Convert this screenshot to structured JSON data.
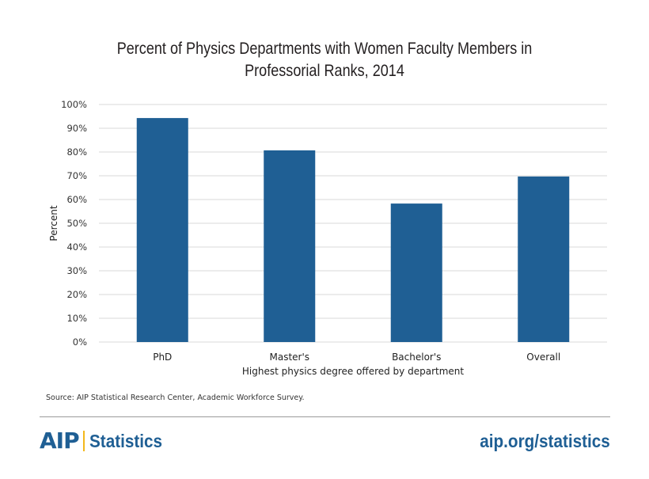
{
  "chart_data": {
    "type": "bar",
    "title": "Percent of Physics Departments with Women Faculty Members in Professorial Ranks, 2014",
    "title_lines": [
      "Percent of Physics Departments with Women Faculty Members in",
      "Professorial Ranks, 2014"
    ],
    "categories": [
      "PhD",
      "Master's",
      "Bachelor's",
      "Overall"
    ],
    "values": [
      94.3,
      80.7,
      58.3,
      69.7
    ],
    "value_unit": "%",
    "xlabel": "Highest physics degree offered by department",
    "ylabel": "Percent",
    "ylim": [
      0,
      100
    ],
    "yticks": [
      0,
      10,
      20,
      30,
      40,
      50,
      60,
      70,
      80,
      90,
      100
    ],
    "ytick_labels": [
      "0%",
      "10%",
      "20%",
      "30%",
      "40%",
      "50%",
      "60%",
      "70%",
      "80%",
      "90%",
      "100%"
    ],
    "grid": true,
    "legend": "none",
    "bar_color": "#1f5f94",
    "grid_color": "#d9d9d9"
  },
  "source": "Source: AIP Statistical Research Center, Academic Workforce Survey.",
  "footer": {
    "brand_mark": "AIP",
    "brand_label": "Statistics",
    "url": "aip.org/statistics",
    "brand_color": "#1f5f94",
    "accent_color": "#f3b81b"
  }
}
